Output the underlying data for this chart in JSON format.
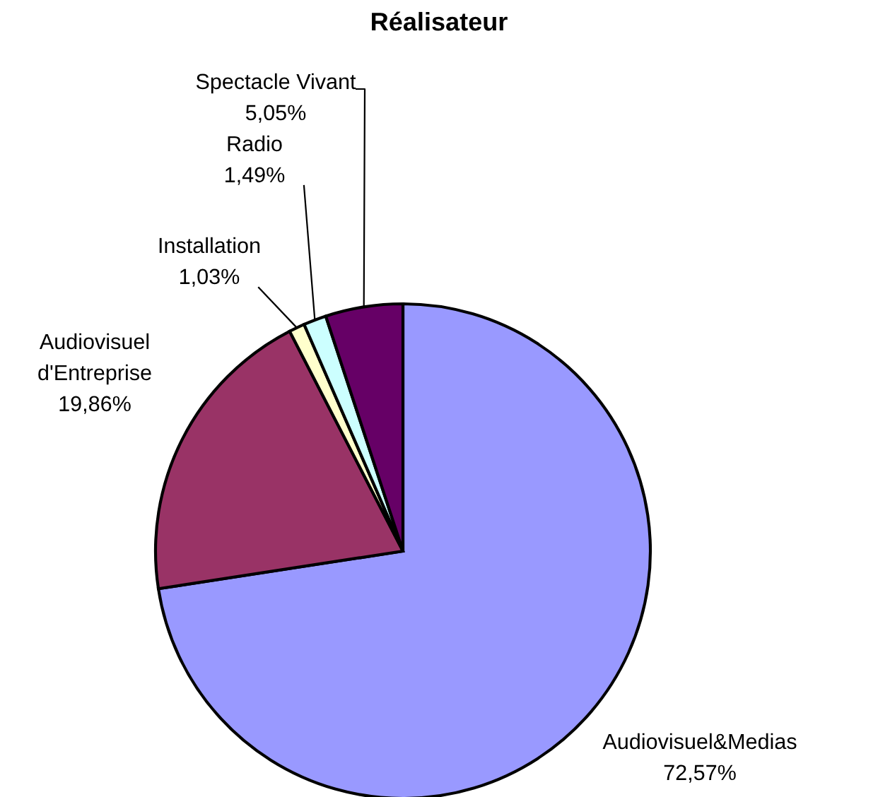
{
  "chart_data": {
    "type": "pie",
    "title": "Réalisateur",
    "categories": [
      "Audiovisuel&Medias",
      "Audiovisuel d'Entreprise",
      "Installation",
      "Radio",
      "Spectacle Vivant"
    ],
    "values": [
      72.57,
      19.86,
      1.03,
      1.49,
      5.05
    ],
    "value_labels": [
      "72,57%",
      "19,86%",
      "1,03%",
      "1,49%",
      "5,05%"
    ],
    "colors": [
      "#9999ff",
      "#993366",
      "#ffffcc",
      "#ccffff",
      "#660066"
    ],
    "legend": false
  }
}
